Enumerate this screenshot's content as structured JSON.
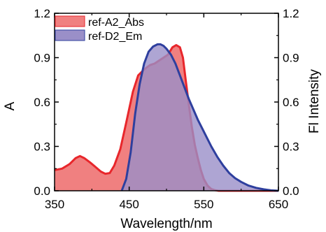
{
  "chart_data": {
    "type": "area",
    "xlabel": "Wavelength/nm",
    "ylabel": "A",
    "y2label": "Fl Intensity",
    "xlim": [
      350,
      650
    ],
    "ylim": [
      0,
      1.2
    ],
    "y2lim": [
      0,
      1.2
    ],
    "xticks": [
      "350",
      "450",
      "550",
      "650"
    ],
    "yticks": [
      "0.0",
      "0.3",
      "0.6",
      "0.9",
      "1.2"
    ],
    "y2ticks": [
      "0.0",
      "0.3",
      "0.6",
      "0.9",
      "1.2"
    ],
    "grid": false,
    "legend_position": "top-left",
    "series": [
      {
        "name": "ref-A2_Abs",
        "axis": "left",
        "fill_color": "#f08080",
        "line_color": "#e8262b",
        "x": [
          350,
          360,
          370,
          378,
          384,
          390,
          398,
          405,
          412,
          418,
          424,
          430,
          438,
          446,
          455,
          462,
          470,
          478,
          484,
          490,
          496,
          502,
          508,
          513,
          518,
          522,
          526,
          530,
          534,
          538,
          542,
          546,
          550,
          555,
          560,
          565,
          570,
          575,
          580,
          600,
          620,
          650
        ],
        "values": [
          0.14,
          0.15,
          0.18,
          0.22,
          0.235,
          0.22,
          0.19,
          0.16,
          0.13,
          0.115,
          0.12,
          0.17,
          0.28,
          0.46,
          0.67,
          0.78,
          0.82,
          0.85,
          0.86,
          0.88,
          0.9,
          0.92,
          0.97,
          0.985,
          0.97,
          0.9,
          0.74,
          0.58,
          0.43,
          0.31,
          0.22,
          0.14,
          0.08,
          0.035,
          0.012,
          0.004,
          0.0,
          0.0,
          0.0,
          0.0,
          0.0,
          0.0
        ]
      },
      {
        "name": "ref-D2_Em",
        "axis": "right",
        "fill_color": "#9a8fc8",
        "line_color": "#2e3f9e",
        "x": [
          440,
          446,
          452,
          458,
          464,
          470,
          476,
          482,
          488,
          492,
          496,
          500,
          506,
          512,
          518,
          524,
          530,
          536,
          542,
          548,
          554,
          560,
          568,
          576,
          584,
          592,
          600,
          610,
          620,
          630,
          640,
          650
        ],
        "values": [
          0.0,
          0.08,
          0.26,
          0.52,
          0.72,
          0.86,
          0.94,
          0.975,
          0.99,
          0.99,
          0.98,
          0.96,
          0.92,
          0.86,
          0.78,
          0.7,
          0.62,
          0.55,
          0.48,
          0.42,
          0.36,
          0.3,
          0.23,
          0.17,
          0.12,
          0.085,
          0.06,
          0.035,
          0.02,
          0.01,
          0.003,
          0.0
        ]
      }
    ]
  }
}
